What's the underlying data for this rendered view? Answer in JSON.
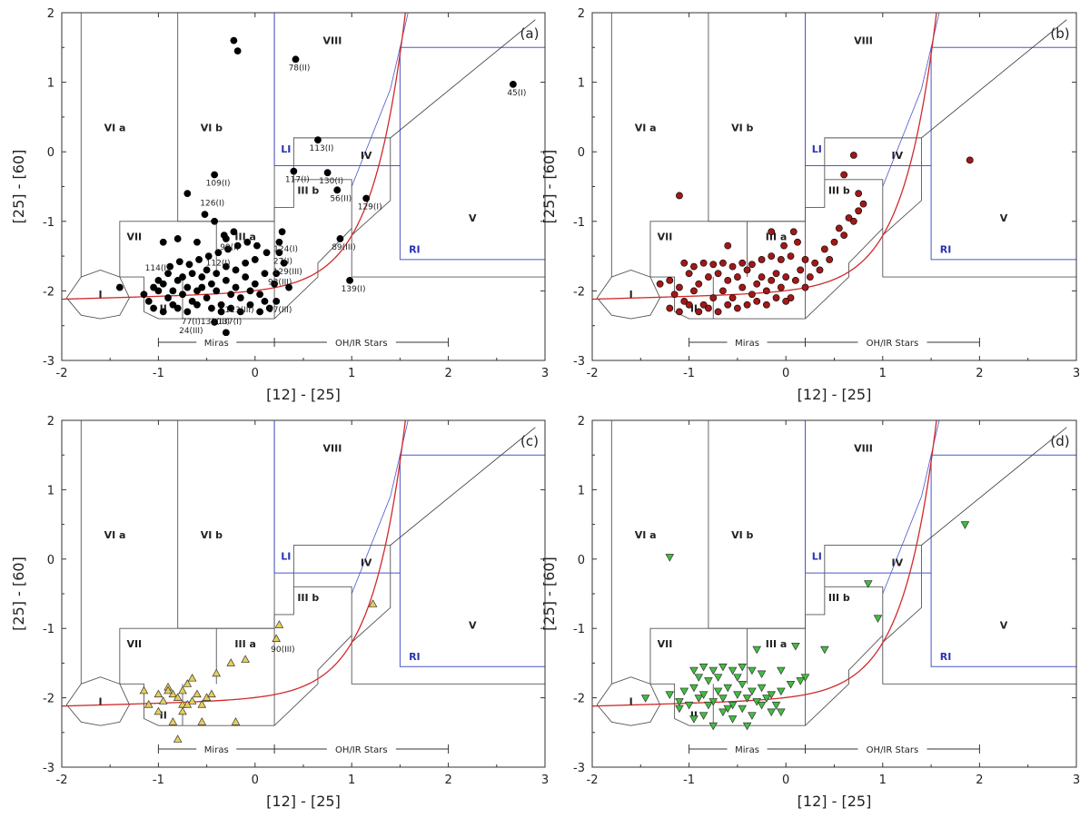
{
  "figure": {
    "xlabel": "[12] - [25]",
    "ylabel": "[25] - [60]",
    "xlim": [
      -2,
      3
    ],
    "ylim": [
      -3,
      2
    ],
    "xticks": [
      -2,
      -1,
      0,
      1,
      2,
      3
    ],
    "yticks": [
      -3,
      -2,
      -1,
      0,
      1,
      2
    ],
    "region_labels": {
      "I": "I",
      "II": "II",
      "IIIa": "III a",
      "IIIb": "III b",
      "IV": "IV",
      "V": "V",
      "VIa": "VI a",
      "VIb": "VI b",
      "VII": "VII",
      "VIII": "VIII",
      "LI": "LI",
      "RI": "RI"
    },
    "miras_label": "Miras",
    "ohir_label": "OH/IR Stars",
    "colors": {
      "curve": "#d12a2a",
      "blue_boxes": "#4a56c8",
      "frame": "#333333"
    }
  },
  "chart_data": [
    {
      "type": "scatter",
      "panel_label": "(a)",
      "marker": "circle",
      "color": "#000000",
      "points": [
        [
          -1.4,
          -1.95
        ],
        [
          -1.15,
          -2.05
        ],
        [
          -1.1,
          -2.15
        ],
        [
          -1.05,
          -1.95
        ],
        [
          -1.0,
          -2.0
        ],
        [
          -0.95,
          -1.9
        ],
        [
          -0.9,
          -2.1
        ],
        [
          -0.85,
          -2.2
        ],
        [
          -0.8,
          -1.85
        ],
        [
          -0.75,
          -2.05
        ],
        [
          -0.7,
          -1.95
        ],
        [
          -0.65,
          -2.15
        ],
        [
          -0.6,
          -2.0
        ],
        [
          -0.55,
          -1.8
        ],
        [
          -0.5,
          -2.1
        ],
        [
          -0.45,
          -1.9
        ],
        [
          -0.4,
          -2.0
        ],
        [
          -0.35,
          -2.2
        ],
        [
          -0.3,
          -1.85
        ],
        [
          -0.25,
          -2.05
        ],
        [
          -0.2,
          -1.95
        ],
        [
          -0.15,
          -2.1
        ],
        [
          -0.1,
          -1.8
        ],
        [
          -0.05,
          -2.0
        ],
        [
          0.0,
          -1.9
        ],
        [
          0.05,
          -2.05
        ],
        [
          0.1,
          -2.15
        ],
        [
          0.15,
          -2.25
        ],
        [
          -1.05,
          -2.25
        ],
        [
          -0.95,
          -2.3
        ],
        [
          -0.85,
          -2.0
        ],
        [
          -0.75,
          -1.8
        ],
        [
          -0.65,
          -1.75
        ],
        [
          -0.55,
          -1.95
        ],
        [
          -0.45,
          -2.25
        ],
        [
          -0.35,
          -2.3
        ],
        [
          -0.25,
          -2.25
        ],
        [
          -0.15,
          -2.3
        ],
        [
          -0.05,
          -2.2
        ],
        [
          0.05,
          -2.3
        ],
        [
          -1.0,
          -1.85
        ],
        [
          -0.9,
          -1.75
        ],
        [
          -0.8,
          -2.25
        ],
        [
          -0.7,
          -2.3
        ],
        [
          -0.6,
          -2.2
        ],
        [
          -0.5,
          -1.7
        ],
        [
          -0.4,
          -1.75
        ],
        [
          -0.3,
          -1.65
        ],
        [
          -0.2,
          -1.7
        ],
        [
          -0.1,
          -1.6
        ],
        [
          0.0,
          -1.55
        ],
        [
          0.1,
          -1.75
        ],
        [
          0.2,
          -1.9
        ],
        [
          -0.88,
          -1.65
        ],
        [
          -0.78,
          -1.58
        ],
        [
          -0.68,
          -1.62
        ],
        [
          -0.58,
          -1.55
        ],
        [
          -0.48,
          -1.5
        ],
        [
          -0.38,
          -1.45
        ],
        [
          -0.28,
          -1.4
        ],
        [
          -0.18,
          -1.35
        ],
        [
          -0.08,
          -1.3
        ],
        [
          0.02,
          -1.35
        ],
        [
          0.12,
          -1.45
        ],
        [
          -0.32,
          -1.2
        ],
        [
          -0.22,
          -1.15
        ],
        [
          -0.42,
          -1.0
        ],
        [
          -0.52,
          -0.9
        ],
        [
          -0.7,
          -0.6
        ],
        [
          -0.42,
          -0.33
        ],
        [
          -0.22,
          1.6
        ],
        [
          -0.18,
          1.45
        ],
        [
          0.28,
          -1.15
        ],
        [
          0.25,
          -1.3
        ],
        [
          0.25,
          -1.45
        ],
        [
          0.22,
          -1.75
        ],
        [
          0.22,
          -2.15
        ],
        [
          0.3,
          -1.6
        ],
        [
          0.35,
          -1.95
        ],
        [
          0.4,
          -0.28
        ],
        [
          0.42,
          1.33
        ],
        [
          0.65,
          0.17
        ],
        [
          0.75,
          -0.3
        ],
        [
          0.85,
          -0.55
        ],
        [
          0.88,
          -1.25
        ],
        [
          0.98,
          -1.85
        ],
        [
          1.15,
          -0.67
        ],
        [
          2.67,
          0.97
        ],
        [
          -0.42,
          -2.45
        ],
        [
          -0.3,
          -2.6
        ],
        [
          -0.95,
          -1.3
        ],
        [
          -0.8,
          -1.25
        ],
        [
          -0.6,
          -1.3
        ],
        [
          -0.3,
          -1.25
        ]
      ],
      "point_labels": [
        {
          "x": 0.42,
          "y": 1.33,
          "text": "78(II)"
        },
        {
          "x": 2.67,
          "y": 0.97,
          "text": "45(I)"
        },
        {
          "x": 0.65,
          "y": 0.17,
          "text": "113(I)"
        },
        {
          "x": -0.42,
          "y": -0.33,
          "text": "109(I)"
        },
        {
          "x": 0.4,
          "y": -0.28,
          "text": "117(I)"
        },
        {
          "x": 0.75,
          "y": -0.3,
          "text": "130(I)"
        },
        {
          "x": -0.48,
          "y": -0.62,
          "text": "126(I)"
        },
        {
          "x": 0.85,
          "y": -0.55,
          "text": "56(II)"
        },
        {
          "x": 1.15,
          "y": -0.67,
          "text": "129(I)"
        },
        {
          "x": -0.3,
          "y": -1.25,
          "text": "99(I)"
        },
        {
          "x": 0.28,
          "y": -1.28,
          "text": "124(I)"
        },
        {
          "x": 0.25,
          "y": -1.45,
          "text": "27(I)"
        },
        {
          "x": 0.88,
          "y": -1.25,
          "text": "89(III)"
        },
        {
          "x": -0.42,
          "y": -1.48,
          "text": "112(I)"
        },
        {
          "x": -1.05,
          "y": -1.55,
          "text": "114(I)"
        },
        {
          "x": 0.3,
          "y": -1.6,
          "text": "129(III)"
        },
        {
          "x": 0.22,
          "y": -1.75,
          "text": "92(III)"
        },
        {
          "x": 0.98,
          "y": -1.85,
          "text": "139(I)"
        },
        {
          "x": 0.22,
          "y": -2.15,
          "text": "97(III)"
        },
        {
          "x": -0.2,
          "y": -2.15,
          "text": "113(III)"
        },
        {
          "x": -0.45,
          "y": -2.32,
          "text": "133(III)"
        },
        {
          "x": -0.7,
          "y": -2.32,
          "text": "77(I)"
        },
        {
          "x": -0.3,
          "y": -2.32,
          "text": "137(I)"
        },
        {
          "x": -0.7,
          "y": -2.45,
          "text": "24(III)"
        }
      ]
    },
    {
      "type": "scatter",
      "panel_label": "(b)",
      "marker": "circle",
      "color": "#a01818",
      "points": [
        [
          -1.1,
          -0.63
        ],
        [
          -0.6,
          -1.35
        ],
        [
          -0.15,
          -1.15
        ],
        [
          0.6,
          -0.33
        ],
        [
          0.7,
          -0.05
        ],
        [
          1.9,
          -0.12
        ],
        [
          -1.3,
          -1.9
        ],
        [
          -1.2,
          -1.85
        ],
        [
          -1.15,
          -2.05
        ],
        [
          -1.1,
          -1.95
        ],
        [
          -1.05,
          -2.15
        ],
        [
          -1.0,
          -1.75
        ],
        [
          -0.95,
          -2.0
        ],
        [
          -0.9,
          -1.9
        ],
        [
          -0.85,
          -2.2
        ],
        [
          -0.8,
          -1.8
        ],
        [
          -0.75,
          -2.1
        ],
        [
          -0.7,
          -1.75
        ],
        [
          -0.65,
          -2.0
        ],
        [
          -0.6,
          -1.85
        ],
        [
          -0.55,
          -2.1
        ],
        [
          -0.5,
          -1.8
        ],
        [
          -0.45,
          -1.95
        ],
        [
          -0.4,
          -1.7
        ],
        [
          -0.35,
          -2.05
        ],
        [
          -0.3,
          -1.9
        ],
        [
          -0.25,
          -1.8
        ],
        [
          -0.2,
          -2.0
        ],
        [
          -0.15,
          -1.85
        ],
        [
          -0.1,
          -1.75
        ],
        [
          -0.05,
          -1.95
        ],
        [
          0.0,
          -1.8
        ],
        [
          0.05,
          -2.1
        ],
        [
          0.1,
          -1.85
        ],
        [
          0.15,
          -1.7
        ],
        [
          0.2,
          -1.95
        ],
        [
          0.25,
          -1.8
        ],
        [
          0.3,
          -1.6
        ],
        [
          0.35,
          -1.7
        ],
        [
          0.4,
          -1.4
        ],
        [
          0.45,
          -1.55
        ],
        [
          0.5,
          -1.3
        ],
        [
          0.55,
          -1.1
        ],
        [
          0.6,
          -1.2
        ],
        [
          0.65,
          -0.95
        ],
        [
          0.7,
          -1.0
        ],
        [
          0.75,
          -0.85
        ],
        [
          0.8,
          -0.75
        ],
        [
          0.75,
          -0.6
        ],
        [
          -1.2,
          -2.25
        ],
        [
          -1.1,
          -2.3
        ],
        [
          -1.0,
          -2.2
        ],
        [
          -0.9,
          -2.3
        ],
        [
          -0.8,
          -2.25
        ],
        [
          -0.7,
          -2.3
        ],
        [
          -0.6,
          -2.2
        ],
        [
          -0.5,
          -2.25
        ],
        [
          -0.4,
          -2.2
        ],
        [
          -0.3,
          -2.15
        ],
        [
          -0.2,
          -2.2
        ],
        [
          -0.1,
          -2.1
        ],
        [
          0.0,
          -2.15
        ],
        [
          -1.05,
          -1.6
        ],
        [
          -0.95,
          -1.65
        ],
        [
          -0.85,
          -1.6
        ],
        [
          -0.75,
          -1.62
        ],
        [
          -0.65,
          -1.6
        ],
        [
          -0.55,
          -1.65
        ],
        [
          -0.45,
          -1.6
        ],
        [
          -0.35,
          -1.62
        ],
        [
          -0.25,
          -1.55
        ],
        [
          -0.15,
          -1.5
        ],
        [
          -0.05,
          -1.55
        ],
        [
          0.05,
          -1.5
        ],
        [
          -0.02,
          -1.35
        ],
        [
          0.08,
          -1.15
        ],
        [
          0.12,
          -1.3
        ],
        [
          0.2,
          -1.55
        ]
      ]
    },
    {
      "type": "scatter",
      "panel_label": "(c)",
      "marker": "triangle-up",
      "color": "#e6cf5a",
      "points": [
        [
          -1.15,
          -1.9
        ],
        [
          -1.1,
          -2.1
        ],
        [
          -1.0,
          -1.95
        ],
        [
          -0.95,
          -2.05
        ],
        [
          -0.9,
          -1.85
        ],
        [
          -0.85,
          -1.95
        ],
        [
          -0.8,
          -2.0
        ],
        [
          -0.75,
          -2.1
        ],
        [
          -0.7,
          -1.8
        ],
        [
          -0.65,
          -2.05
        ],
        [
          -0.6,
          -1.95
        ],
        [
          -0.55,
          -2.1
        ],
        [
          -0.5,
          -2.0
        ],
        [
          -0.45,
          -1.95
        ],
        [
          -0.85,
          -2.35
        ],
        [
          -0.75,
          -2.2
        ],
        [
          -0.7,
          -2.1
        ],
        [
          -0.55,
          -2.35
        ],
        [
          -0.2,
          -2.35
        ],
        [
          -0.8,
          -2.6
        ],
        [
          -0.65,
          -1.72
        ],
        [
          -0.4,
          -1.65
        ],
        [
          -0.25,
          -1.5
        ],
        [
          -0.1,
          -1.45
        ],
        [
          0.25,
          -0.95
        ],
        [
          0.22,
          -1.15
        ],
        [
          1.22,
          -0.65
        ],
        [
          -0.9,
          -1.9
        ],
        [
          -1.0,
          -2.2
        ],
        [
          -0.75,
          -1.9
        ]
      ],
      "point_labels": [
        {
          "x": 0.25,
          "y": -1.18,
          "text": "90(III)"
        }
      ]
    },
    {
      "type": "scatter",
      "panel_label": "(d)",
      "marker": "triangle-down",
      "color": "#3fbf3f",
      "points": [
        [
          -1.2,
          0.03
        ],
        [
          1.85,
          0.5
        ],
        [
          0.85,
          -0.35
        ],
        [
          0.95,
          -0.85
        ],
        [
          0.4,
          -1.3
        ],
        [
          0.1,
          -1.25
        ],
        [
          0.2,
          -1.7
        ],
        [
          0.15,
          -1.75
        ],
        [
          -0.05,
          -1.6
        ],
        [
          -0.3,
          -1.3
        ],
        [
          -1.45,
          -2.0
        ],
        [
          -1.2,
          -1.95
        ],
        [
          -1.1,
          -2.05
        ],
        [
          -1.05,
          -1.9
        ],
        [
          -1.0,
          -2.1
        ],
        [
          -0.95,
          -1.85
        ],
        [
          -0.9,
          -2.0
        ],
        [
          -0.85,
          -1.95
        ],
        [
          -0.8,
          -1.75
        ],
        [
          -0.75,
          -2.05
        ],
        [
          -0.7,
          -1.9
        ],
        [
          -0.65,
          -2.0
        ],
        [
          -0.6,
          -1.85
        ],
        [
          -0.55,
          -2.1
        ],
        [
          -0.5,
          -1.95
        ],
        [
          -0.45,
          -1.8
        ],
        [
          -0.4,
          -2.0
        ],
        [
          -0.35,
          -1.9
        ],
        [
          -0.3,
          -2.05
        ],
        [
          -0.25,
          -1.85
        ],
        [
          -0.2,
          -2.0
        ],
        [
          -0.15,
          -1.95
        ],
        [
          -0.1,
          -2.1
        ],
        [
          -0.05,
          -1.9
        ],
        [
          -0.95,
          -2.3
        ],
        [
          -0.85,
          -2.25
        ],
        [
          -0.75,
          -2.4
        ],
        [
          -0.65,
          -2.2
        ],
        [
          -0.55,
          -2.3
        ],
        [
          -0.45,
          -2.15
        ],
        [
          -0.35,
          -2.25
        ],
        [
          -0.25,
          -2.1
        ],
        [
          -0.15,
          -2.2
        ],
        [
          -0.95,
          -1.6
        ],
        [
          -0.85,
          -1.55
        ],
        [
          -0.75,
          -1.6
        ],
        [
          -0.65,
          -1.55
        ],
        [
          -0.55,
          -1.6
        ],
        [
          -0.45,
          -1.55
        ],
        [
          -0.35,
          -1.6
        ],
        [
          -0.25,
          -1.65
        ],
        [
          -0.9,
          -1.7
        ],
        [
          -0.7,
          -1.7
        ],
        [
          -0.5,
          -1.7
        ],
        [
          -1.1,
          -2.15
        ],
        [
          -0.8,
          -2.1
        ],
        [
          -0.6,
          -2.15
        ],
        [
          -0.4,
          -2.4
        ],
        [
          -0.05,
          -2.2
        ],
        [
          0.05,
          -1.8
        ]
      ]
    }
  ]
}
